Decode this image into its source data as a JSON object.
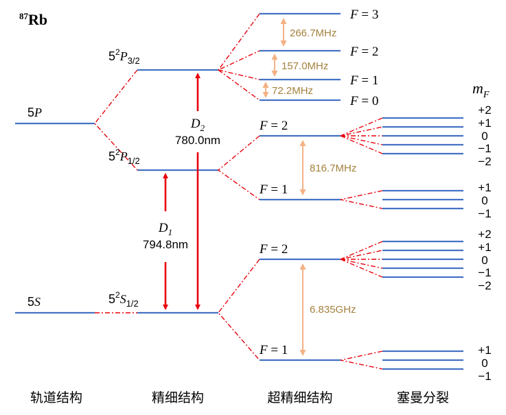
{
  "title": {
    "mass": "87",
    "element": "Rb"
  },
  "columns": {
    "orbital": "轨道结构",
    "fine": "精细结构",
    "hyperfine": "超精细结构",
    "zeeman": "塞曼分裂"
  },
  "orbital": {
    "p": {
      "n": "5",
      "l": "P"
    },
    "s": {
      "n": "5",
      "l": "S"
    }
  },
  "fine": {
    "p32": {
      "base": "5",
      "sup": "2",
      "l": "P",
      "sub": "3/2"
    },
    "p12": {
      "base": "5",
      "sup": "2",
      "l": "P",
      "sub": "1/2"
    },
    "s12": {
      "base": "5",
      "sup": "2",
      "l": "S",
      "sub": "1/2"
    }
  },
  "transitions": {
    "d2": {
      "name": "D",
      "sub": "2",
      "wavelength": "780.0nm"
    },
    "d1": {
      "name": "D",
      "sub": "1",
      "wavelength": "794.8nm"
    }
  },
  "hyperfine": {
    "p32": [
      {
        "F": "F",
        "eq": " = 3"
      },
      {
        "F": "F",
        "eq": " = 2"
      },
      {
        "F": "F",
        "eq": " = 1"
      },
      {
        "F": "F",
        "eq": " = 0"
      }
    ],
    "p12": [
      {
        "F": "F",
        "eq": " = 2"
      },
      {
        "F": "F",
        "eq": " = 1"
      }
    ],
    "s12": [
      {
        "F": "F",
        "eq": " = 2"
      },
      {
        "F": "F",
        "eq": " = 1"
      }
    ]
  },
  "splittings": {
    "p32_32": "266.7MHz",
    "p32_21": "157.0MHz",
    "p32_10": "72.2MHz",
    "p12": "816.7MHz",
    "s12": "6.835GHz"
  },
  "zeeman": {
    "header": {
      "m": "m",
      "sub": "F"
    },
    "p12_F2": [
      "+2",
      "+1",
      "0",
      "−1",
      "−2"
    ],
    "p12_F1": [
      "+1",
      "0",
      "−1"
    ],
    "s12_F2": [
      "+2",
      "+1",
      "0",
      "−1",
      "−2"
    ],
    "s12_F1": [
      "+1",
      "0",
      "−1"
    ]
  },
  "colors": {
    "level": "#4472c4",
    "transition": "#e8000b",
    "splitting_arrow": "#f4b183",
    "splitting_text": "#a4803c"
  }
}
